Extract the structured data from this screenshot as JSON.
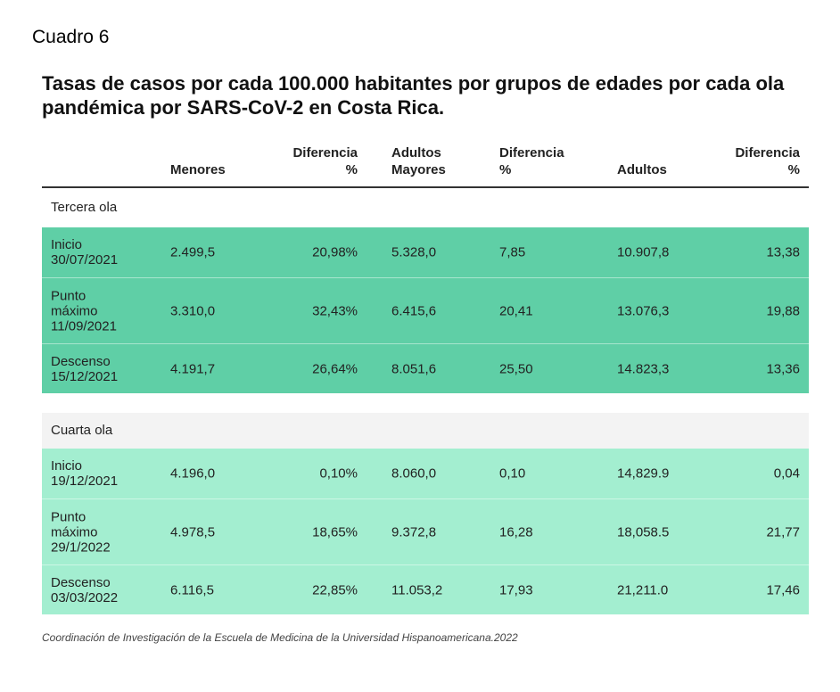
{
  "cuadro_label": "Cuadro 6",
  "title": "Tasas de casos por cada 100.000 habitantes por grupos de edades por cada ola pandémica por SARS-CoV-2 en Costa Rica.",
  "headers": {
    "menores": "Menores",
    "dif1_a": "Diferencia",
    "dif1_b": "%",
    "mayores_a": "Adultos",
    "mayores_b": "Mayores",
    "dif2_a": "Diferencia",
    "dif2_b": "%",
    "adultos": "Adultos",
    "dif3_a": "Diferencia",
    "dif3_b": "%"
  },
  "groups": [
    {
      "name": "Tercera ola",
      "color": "#5fcfa6",
      "rows": [
        {
          "l1": "Inicio",
          "l2": "30/07/2021",
          "l3": "",
          "menores": "2.499,5",
          "dif1": "20,98%",
          "mayores": "5.328,0",
          "dif2": "7,85",
          "adultos": "10.907,8",
          "dif3": "13,38"
        },
        {
          "l1": "Punto",
          "l2": "máximo",
          "l3": "11/09/2021",
          "menores": "3.310,0",
          "dif1": "32,43%",
          "mayores": "6.415,6",
          "dif2": "20,41",
          "adultos": "13.076,3",
          "dif3": "19,88"
        },
        {
          "l1": "Descenso",
          "l2": "15/12/2021",
          "l3": "",
          "menores": "4.191,7",
          "dif1": "26,64%",
          "mayores": "8.051,6",
          "dif2": "25,50",
          "adultos": "14.823,3",
          "dif3": "13,36"
        }
      ]
    },
    {
      "name": "Cuarta ola",
      "color": "#a3eed0",
      "rows": [
        {
          "l1": "Inicio",
          "l2": "19/12/2021",
          "l3": "",
          "menores": "4.196,0",
          "dif1": "0,10%",
          "mayores": "8.060,0",
          "dif2": "0,10",
          "adultos": "14,829.9",
          "dif3": "0,04"
        },
        {
          "l1": "Punto",
          "l2": "máximo",
          "l3": "29/1/2022",
          "menores": "4.978,5",
          "dif1": "18,65%",
          "mayores": "9.372,8",
          "dif2": "16,28",
          "adultos": "18,058.5",
          "dif3": "21,77"
        },
        {
          "l1": "Descenso",
          "l2": "03/03/2022",
          "l3": "",
          "menores": "6.116,5",
          "dif1": "22,85%",
          "mayores": "11.053,2",
          "dif2": "17,93",
          "adultos": "21,211.0",
          "dif3": "17,46"
        }
      ]
    }
  ],
  "source": "Coordinación de Investigación de la Escuela de Medicina de la Universidad Hispanoamericana.2022"
}
